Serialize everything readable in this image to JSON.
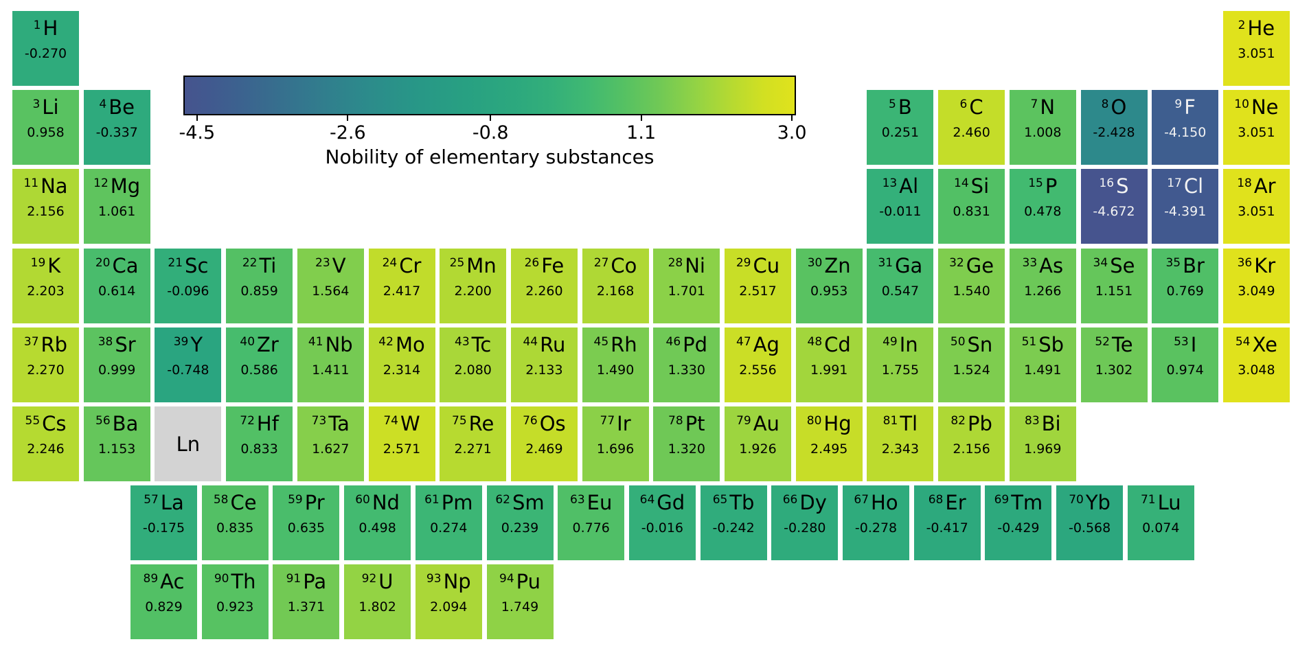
{
  "colorbar": {
    "title": "Nobility of elementary substances",
    "min": -4.672,
    "max": 3.051,
    "ticks": [
      {
        "label": "-4.5",
        "value": -4.5
      },
      {
        "label": "-2.6",
        "value": -2.6
      },
      {
        "label": "-0.8",
        "value": -0.8
      },
      {
        "label": "1.1",
        "value": 1.1
      },
      {
        "label": "3.0",
        "value": 3.0
      }
    ],
    "gradient_stops": [
      {
        "t": 0.0,
        "color": "#46548e"
      },
      {
        "t": 0.04,
        "color": "#41598f"
      },
      {
        "t": 0.09,
        "color": "#3c628f"
      },
      {
        "t": 0.16,
        "color": "#36708e"
      },
      {
        "t": 0.24,
        "color": "#30808d"
      },
      {
        "t": 0.3,
        "color": "#2c8b8b"
      },
      {
        "t": 0.38,
        "color": "#289787"
      },
      {
        "t": 0.46,
        "color": "#28a082"
      },
      {
        "t": 0.54,
        "color": "#2ca87e"
      },
      {
        "t": 0.6,
        "color": "#33af7a"
      },
      {
        "t": 0.66,
        "color": "#40b972"
      },
      {
        "t": 0.72,
        "color": "#55c163"
      },
      {
        "t": 0.78,
        "color": "#71c955"
      },
      {
        "t": 0.84,
        "color": "#94d344"
      },
      {
        "t": 0.9,
        "color": "#b8da30"
      },
      {
        "t": 0.95,
        "color": "#d2e022"
      },
      {
        "t": 1.0,
        "color": "#e0e21c"
      }
    ]
  },
  "chart_data": {
    "type": "heatmap",
    "title": "Nobility of elementary substances",
    "colormap": "viridis-like",
    "value_range": [
      -4.672,
      3.051
    ],
    "placeholder_color": "#d3d3d3",
    "elements": [
      {
        "number": 1,
        "symbol": "H",
        "value": "-0.270",
        "row": 1,
        "col": 1
      },
      {
        "number": 2,
        "symbol": "He",
        "value": "3.051",
        "row": 1,
        "col": 18
      },
      {
        "number": 3,
        "symbol": "Li",
        "value": "0.958",
        "row": 2,
        "col": 1
      },
      {
        "number": 4,
        "symbol": "Be",
        "value": "-0.337",
        "row": 2,
        "col": 2
      },
      {
        "number": 5,
        "symbol": "B",
        "value": "0.251",
        "row": 2,
        "col": 13
      },
      {
        "number": 6,
        "symbol": "C",
        "value": "2.460",
        "row": 2,
        "col": 14
      },
      {
        "number": 7,
        "symbol": "N",
        "value": "1.008",
        "row": 2,
        "col": 15
      },
      {
        "number": 8,
        "symbol": "O",
        "value": "-2.428",
        "row": 2,
        "col": 16
      },
      {
        "number": 9,
        "symbol": "F",
        "value": "-4.150",
        "row": 2,
        "col": 17
      },
      {
        "number": 10,
        "symbol": "Ne",
        "value": "3.051",
        "row": 2,
        "col": 18
      },
      {
        "number": 11,
        "symbol": "Na",
        "value": "2.156",
        "row": 3,
        "col": 1
      },
      {
        "number": 12,
        "symbol": "Mg",
        "value": "1.061",
        "row": 3,
        "col": 2
      },
      {
        "number": 13,
        "symbol": "Al",
        "value": "-0.011",
        "row": 3,
        "col": 13
      },
      {
        "number": 14,
        "symbol": "Si",
        "value": "0.831",
        "row": 3,
        "col": 14
      },
      {
        "number": 15,
        "symbol": "P",
        "value": "0.478",
        "row": 3,
        "col": 15
      },
      {
        "number": 16,
        "symbol": "S",
        "value": "-4.672",
        "row": 3,
        "col": 16
      },
      {
        "number": 17,
        "symbol": "Cl",
        "value": "-4.391",
        "row": 3,
        "col": 17
      },
      {
        "number": 18,
        "symbol": "Ar",
        "value": "3.051",
        "row": 3,
        "col": 18
      },
      {
        "number": 19,
        "symbol": "K",
        "value": "2.203",
        "row": 4,
        "col": 1
      },
      {
        "number": 20,
        "symbol": "Ca",
        "value": "0.614",
        "row": 4,
        "col": 2
      },
      {
        "number": 21,
        "symbol": "Sc",
        "value": "-0.096",
        "row": 4,
        "col": 3
      },
      {
        "number": 22,
        "symbol": "Ti",
        "value": "0.859",
        "row": 4,
        "col": 4
      },
      {
        "number": 23,
        "symbol": "V",
        "value": "1.564",
        "row": 4,
        "col": 5
      },
      {
        "number": 24,
        "symbol": "Cr",
        "value": "2.417",
        "row": 4,
        "col": 6
      },
      {
        "number": 25,
        "symbol": "Mn",
        "value": "2.200",
        "row": 4,
        "col": 7
      },
      {
        "number": 26,
        "symbol": "Fe",
        "value": "2.260",
        "row": 4,
        "col": 8
      },
      {
        "number": 27,
        "symbol": "Co",
        "value": "2.168",
        "row": 4,
        "col": 9
      },
      {
        "number": 28,
        "symbol": "Ni",
        "value": "1.701",
        "row": 4,
        "col": 10
      },
      {
        "number": 29,
        "symbol": "Cu",
        "value": "2.517",
        "row": 4,
        "col": 11
      },
      {
        "number": 30,
        "symbol": "Zn",
        "value": "0.953",
        "row": 4,
        "col": 12
      },
      {
        "number": 31,
        "symbol": "Ga",
        "value": "0.547",
        "row": 4,
        "col": 13
      },
      {
        "number": 32,
        "symbol": "Ge",
        "value": "1.540",
        "row": 4,
        "col": 14
      },
      {
        "number": 33,
        "symbol": "As",
        "value": "1.266",
        "row": 4,
        "col": 15
      },
      {
        "number": 34,
        "symbol": "Se",
        "value": "1.151",
        "row": 4,
        "col": 16
      },
      {
        "number": 35,
        "symbol": "Br",
        "value": "0.769",
        "row": 4,
        "col": 17
      },
      {
        "number": 36,
        "symbol": "Kr",
        "value": "3.049",
        "row": 4,
        "col": 18
      },
      {
        "number": 37,
        "symbol": "Rb",
        "value": "2.270",
        "row": 5,
        "col": 1
      },
      {
        "number": 38,
        "symbol": "Sr",
        "value": "0.999",
        "row": 5,
        "col": 2
      },
      {
        "number": 39,
        "symbol": "Y",
        "value": "-0.748",
        "row": 5,
        "col": 3
      },
      {
        "number": 40,
        "symbol": "Zr",
        "value": "0.586",
        "row": 5,
        "col": 4
      },
      {
        "number": 41,
        "symbol": "Nb",
        "value": "1.411",
        "row": 5,
        "col": 5
      },
      {
        "number": 42,
        "symbol": "Mo",
        "value": "2.314",
        "row": 5,
        "col": 6
      },
      {
        "number": 43,
        "symbol": "Tc",
        "value": "2.080",
        "row": 5,
        "col": 7
      },
      {
        "number": 44,
        "symbol": "Ru",
        "value": "2.133",
        "row": 5,
        "col": 8
      },
      {
        "number": 45,
        "symbol": "Rh",
        "value": "1.490",
        "row": 5,
        "col": 9
      },
      {
        "number": 46,
        "symbol": "Pd",
        "value": "1.330",
        "row": 5,
        "col": 10
      },
      {
        "number": 47,
        "symbol": "Ag",
        "value": "2.556",
        "row": 5,
        "col": 11
      },
      {
        "number": 48,
        "symbol": "Cd",
        "value": "1.991",
        "row": 5,
        "col": 12
      },
      {
        "number": 49,
        "symbol": "In",
        "value": "1.755",
        "row": 5,
        "col": 13
      },
      {
        "number": 50,
        "symbol": "Sn",
        "value": "1.524",
        "row": 5,
        "col": 14
      },
      {
        "number": 51,
        "symbol": "Sb",
        "value": "1.491",
        "row": 5,
        "col": 15
      },
      {
        "number": 52,
        "symbol": "Te",
        "value": "1.302",
        "row": 5,
        "col": 16
      },
      {
        "number": 53,
        "symbol": "I",
        "value": "0.974",
        "row": 5,
        "col": 17
      },
      {
        "number": 54,
        "symbol": "Xe",
        "value": "3.048",
        "row": 5,
        "col": 18
      },
      {
        "number": 55,
        "symbol": "Cs",
        "value": "2.246",
        "row": 6,
        "col": 1
      },
      {
        "number": 56,
        "symbol": "Ba",
        "value": "1.153",
        "row": 6,
        "col": 2
      },
      {
        "symbol": "Ln",
        "placeholder": true,
        "row": 6,
        "col": 3
      },
      {
        "number": 72,
        "symbol": "Hf",
        "value": "0.833",
        "row": 6,
        "col": 4
      },
      {
        "number": 73,
        "symbol": "Ta",
        "value": "1.627",
        "row": 6,
        "col": 5
      },
      {
        "number": 74,
        "symbol": "W",
        "value": "2.571",
        "row": 6,
        "col": 6
      },
      {
        "number": 75,
        "symbol": "Re",
        "value": "2.271",
        "row": 6,
        "col": 7
      },
      {
        "number": 76,
        "symbol": "Os",
        "value": "2.469",
        "row": 6,
        "col": 8
      },
      {
        "number": 77,
        "symbol": "Ir",
        "value": "1.696",
        "row": 6,
        "col": 9
      },
      {
        "number": 78,
        "symbol": "Pt",
        "value": "1.320",
        "row": 6,
        "col": 10
      },
      {
        "number": 79,
        "symbol": "Au",
        "value": "1.926",
        "row": 6,
        "col": 11
      },
      {
        "number": 80,
        "symbol": "Hg",
        "value": "2.495",
        "row": 6,
        "col": 12
      },
      {
        "number": 81,
        "symbol": "Tl",
        "value": "2.343",
        "row": 6,
        "col": 13
      },
      {
        "number": 82,
        "symbol": "Pb",
        "value": "2.156",
        "row": 6,
        "col": 14
      },
      {
        "number": 83,
        "symbol": "Bi",
        "value": "1.969",
        "row": 6,
        "col": 15
      },
      {
        "number": 57,
        "symbol": "La",
        "value": "-0.175",
        "row": 7,
        "col": 1,
        "fblock": true
      },
      {
        "number": 58,
        "symbol": "Ce",
        "value": "0.835",
        "row": 7,
        "col": 2,
        "fblock": true
      },
      {
        "number": 59,
        "symbol": "Pr",
        "value": "0.635",
        "row": 7,
        "col": 3,
        "fblock": true
      },
      {
        "number": 60,
        "symbol": "Nd",
        "value": "0.498",
        "row": 7,
        "col": 4,
        "fblock": true
      },
      {
        "number": 61,
        "symbol": "Pm",
        "value": "0.274",
        "row": 7,
        "col": 5,
        "fblock": true
      },
      {
        "number": 62,
        "symbol": "Sm",
        "value": "0.239",
        "row": 7,
        "col": 6,
        "fblock": true
      },
      {
        "number": 63,
        "symbol": "Eu",
        "value": "0.776",
        "row": 7,
        "col": 7,
        "fblock": true
      },
      {
        "number": 64,
        "symbol": "Gd",
        "value": "-0.016",
        "row": 7,
        "col": 8,
        "fblock": true
      },
      {
        "number": 65,
        "symbol": "Tb",
        "value": "-0.242",
        "row": 7,
        "col": 9,
        "fblock": true
      },
      {
        "number": 66,
        "symbol": "Dy",
        "value": "-0.280",
        "row": 7,
        "col": 10,
        "fblock": true
      },
      {
        "number": 67,
        "symbol": "Ho",
        "value": "-0.278",
        "row": 7,
        "col": 11,
        "fblock": true
      },
      {
        "number": 68,
        "symbol": "Er",
        "value": "-0.417",
        "row": 7,
        "col": 12,
        "fblock": true
      },
      {
        "number": 69,
        "symbol": "Tm",
        "value": "-0.429",
        "row": 7,
        "col": 13,
        "fblock": true
      },
      {
        "number": 70,
        "symbol": "Yb",
        "value": "-0.568",
        "row": 7,
        "col": 14,
        "fblock": true
      },
      {
        "number": 71,
        "symbol": "Lu",
        "value": "0.074",
        "row": 7,
        "col": 15,
        "fblock": true
      },
      {
        "number": 89,
        "symbol": "Ac",
        "value": "0.829",
        "row": 8,
        "col": 1,
        "fblock": true
      },
      {
        "number": 90,
        "symbol": "Th",
        "value": "0.923",
        "row": 8,
        "col": 2,
        "fblock": true
      },
      {
        "number": 91,
        "symbol": "Pa",
        "value": "1.371",
        "row": 8,
        "col": 3,
        "fblock": true
      },
      {
        "number": 92,
        "symbol": "U",
        "value": "1.802",
        "row": 8,
        "col": 4,
        "fblock": true
      },
      {
        "number": 93,
        "symbol": "Np",
        "value": "2.094",
        "row": 8,
        "col": 5,
        "fblock": true
      },
      {
        "number": 94,
        "symbol": "Pu",
        "value": "1.749",
        "row": 8,
        "col": 6,
        "fblock": true
      }
    ]
  }
}
